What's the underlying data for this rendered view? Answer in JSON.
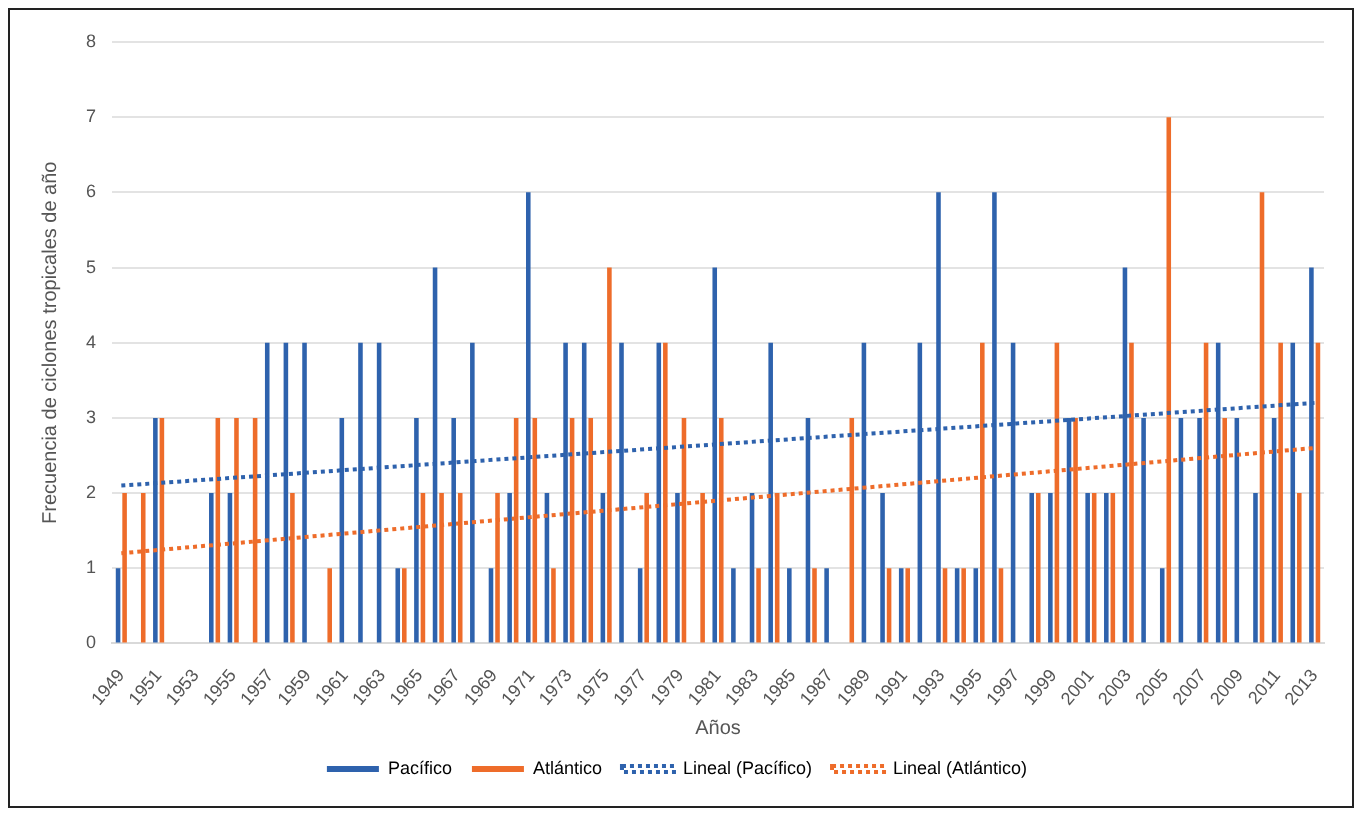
{
  "chart_data": {
    "type": "bar",
    "xlabel": "Años",
    "ylabel": "Frecuencia de ciclones tropicales de año",
    "categories": [
      "1949",
      null,
      "1951",
      null,
      "1953",
      null,
      "1955",
      null,
      "1957",
      null,
      "1959",
      null,
      "1961",
      null,
      "1963",
      null,
      "1965",
      null,
      "1967",
      null,
      "1969",
      null,
      "1971",
      null,
      "1973",
      null,
      "1975",
      null,
      "1977",
      null,
      "1979",
      null,
      "1981",
      null,
      "1983",
      null,
      "1985",
      null,
      "1987",
      null,
      "1989",
      null,
      "1991",
      null,
      "1993",
      null,
      "1995",
      null,
      "1997",
      null,
      "1999",
      null,
      "2001",
      null,
      "2003",
      null,
      "2005",
      null,
      "2007",
      null,
      "2009",
      null,
      "2011",
      null,
      "2013"
    ],
    "series": [
      {
        "name": "Pacífico",
        "color": "#2e62ad",
        "values": [
          1,
          0,
          3,
          0,
          0,
          2,
          2,
          0,
          4,
          4,
          4,
          0,
          3,
          4,
          4,
          1,
          3,
          5,
          3,
          4,
          1,
          2,
          6,
          2,
          4,
          4,
          2,
          4,
          1,
          4,
          2,
          0,
          5,
          1,
          2,
          4,
          1,
          3,
          1,
          0,
          4,
          2,
          1,
          4,
          6,
          1,
          1,
          6,
          4,
          2,
          2,
          3,
          2,
          2,
          5,
          3,
          1,
          3,
          3,
          4,
          3,
          2,
          3,
          4,
          5
        ]
      },
      {
        "name": "Atlántico",
        "color": "#ee6c2a",
        "values": [
          2,
          2,
          3,
          0,
          0,
          3,
          3,
          3,
          0,
          2,
          0,
          1,
          0,
          0,
          0,
          1,
          2,
          2,
          2,
          0,
          2,
          3,
          3,
          1,
          3,
          3,
          5,
          0,
          2,
          4,
          3,
          2,
          3,
          0,
          1,
          2,
          0,
          1,
          0,
          3,
          0,
          1,
          1,
          0,
          1,
          1,
          4,
          1,
          0,
          2,
          4,
          3,
          2,
          2,
          4,
          0,
          7,
          0,
          4,
          3,
          0,
          6,
          4,
          2,
          4
        ]
      },
      {
        "name": "Lineal (Pacífico)",
        "type": "line",
        "color": "#2e62ad",
        "line_style": "dotted",
        "marker": "none",
        "values": [
          2.1,
          null,
          null,
          null,
          null,
          null,
          null,
          null,
          null,
          null,
          null,
          null,
          null,
          null,
          null,
          null,
          null,
          null,
          null,
          null,
          null,
          null,
          null,
          null,
          null,
          null,
          null,
          null,
          null,
          null,
          null,
          null,
          null,
          null,
          null,
          null,
          null,
          null,
          null,
          null,
          null,
          null,
          null,
          null,
          null,
          null,
          null,
          null,
          null,
          null,
          null,
          null,
          null,
          null,
          null,
          null,
          null,
          null,
          null,
          null,
          null,
          null,
          null,
          null,
          3.2
        ]
      },
      {
        "name": "Lineal (Atlántico)",
        "type": "line",
        "color": "#ee6c2a",
        "line_style": "dotted",
        "marker": "none",
        "values": [
          1.2,
          null,
          null,
          null,
          null,
          null,
          null,
          null,
          null,
          null,
          null,
          null,
          null,
          null,
          null,
          null,
          null,
          null,
          null,
          null,
          null,
          null,
          null,
          null,
          null,
          null,
          null,
          null,
          null,
          null,
          null,
          null,
          null,
          null,
          null,
          null,
          null,
          null,
          null,
          null,
          null,
          null,
          null,
          null,
          null,
          null,
          null,
          null,
          null,
          null,
          null,
          null,
          null,
          null,
          null,
          null,
          null,
          null,
          null,
          null,
          null,
          null,
          null,
          null,
          2.6
        ]
      }
    ],
    "ylim": [
      0,
      8
    ],
    "yticks": [
      0,
      1,
      2,
      3,
      4,
      5,
      6,
      7,
      8
    ],
    "grid": "y",
    "legend": "bottom"
  }
}
